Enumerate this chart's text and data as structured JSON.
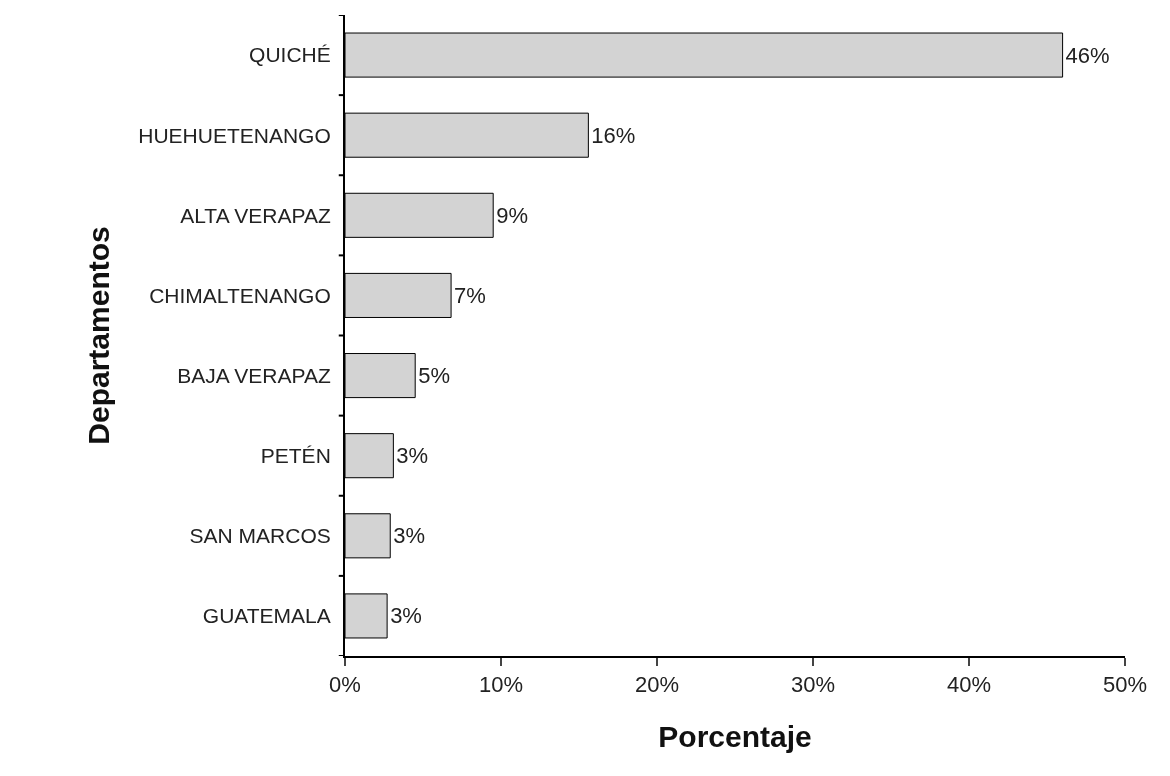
{
  "chart_data": {
    "type": "bar",
    "orientation": "horizontal",
    "xlabel": "Porcentaje",
    "ylabel": "Departamentos",
    "categories": [
      "QUICHÉ",
      "HUEHUETENANGO",
      "ALTA VERAPAZ",
      "CHIMALTENANGO",
      "BAJA VERAPAZ",
      "PETÉN",
      "SAN MARCOS",
      "GUATEMALA"
    ],
    "values": [
      46,
      15.6,
      9.5,
      6.8,
      4.5,
      3.1,
      2.9,
      2.7
    ],
    "value_labels": [
      "46%",
      "16%",
      "9%",
      "7%",
      "5%",
      "3%",
      "3%",
      "3%"
    ],
    "color": "#d3d3d3",
    "xlim": [
      0,
      50
    ],
    "xticks": [
      {
        "value": 0,
        "label": "0%"
      },
      {
        "value": 10,
        "label": "10%"
      },
      {
        "value": 20,
        "label": "20%"
      },
      {
        "value": 30,
        "label": "30%"
      },
      {
        "value": 40,
        "label": "40%"
      },
      {
        "value": 50,
        "label": "50%"
      }
    ],
    "grid": false,
    "legend": false
  }
}
